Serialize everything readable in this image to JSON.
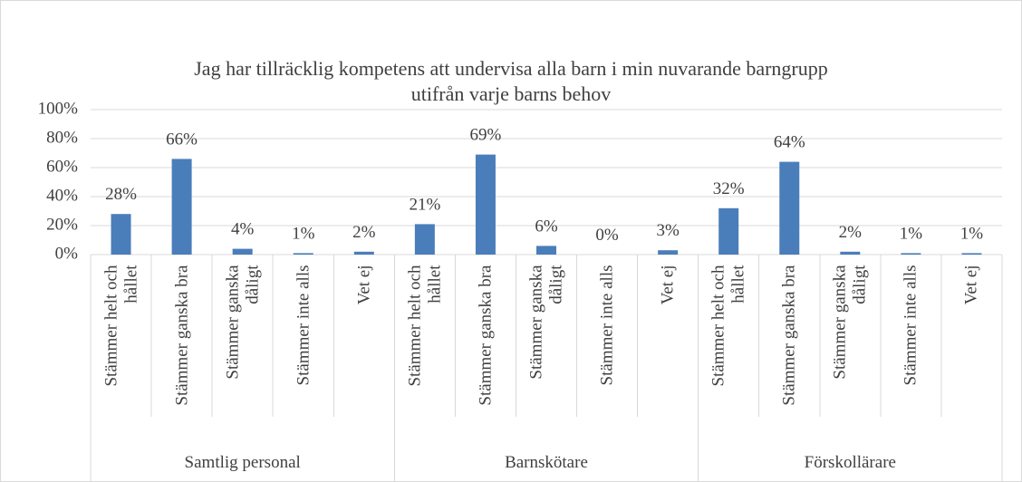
{
  "chart_data": {
    "type": "bar",
    "title": "Jag har tillräcklig kompetens att undervisa alla barn i min nuvarande barngrupp utifrån varje barns behov",
    "color": "#4a7ebb",
    "grid": true,
    "ylim": [
      0,
      100
    ],
    "yticks": [
      {
        "value": 0,
        "label": "0%"
      },
      {
        "value": 20,
        "label": "20%"
      },
      {
        "value": 40,
        "label": "40%"
      },
      {
        "value": 60,
        "label": "60%"
      },
      {
        "value": 80,
        "label": "80%"
      },
      {
        "value": 100,
        "label": "100%"
      }
    ],
    "groups": [
      {
        "name": "Samtlig personal",
        "categories": [
          "Stämmer helt och hållet",
          "Stämmer ganska bra",
          "Stämmer ganska dåligt",
          "Stämmer inte alls",
          "Vet ej"
        ],
        "values": [
          28,
          66,
          4,
          1,
          2
        ],
        "value_labels": [
          "28%",
          "66%",
          "4%",
          "1%",
          "2%"
        ]
      },
      {
        "name": "Barnskötare",
        "categories": [
          "Stämmer helt och hållet",
          "Stämmer ganska bra",
          "Stämmer ganska dåligt",
          "Stämmer inte alls",
          "Vet ej"
        ],
        "values": [
          21,
          69,
          6,
          0,
          3
        ],
        "value_labels": [
          "21%",
          "69%",
          "6%",
          "0%",
          "3%"
        ]
      },
      {
        "name": "Förskollärare",
        "categories": [
          "Stämmer helt och hållet",
          "Stämmer ganska bra",
          "Stämmer ganska dåligt",
          "Stämmer inte alls",
          "Vet ej"
        ],
        "values": [
          32,
          64,
          2,
          1,
          1
        ],
        "value_labels": [
          "32%",
          "64%",
          "2%",
          "1%",
          "1%"
        ]
      }
    ]
  }
}
